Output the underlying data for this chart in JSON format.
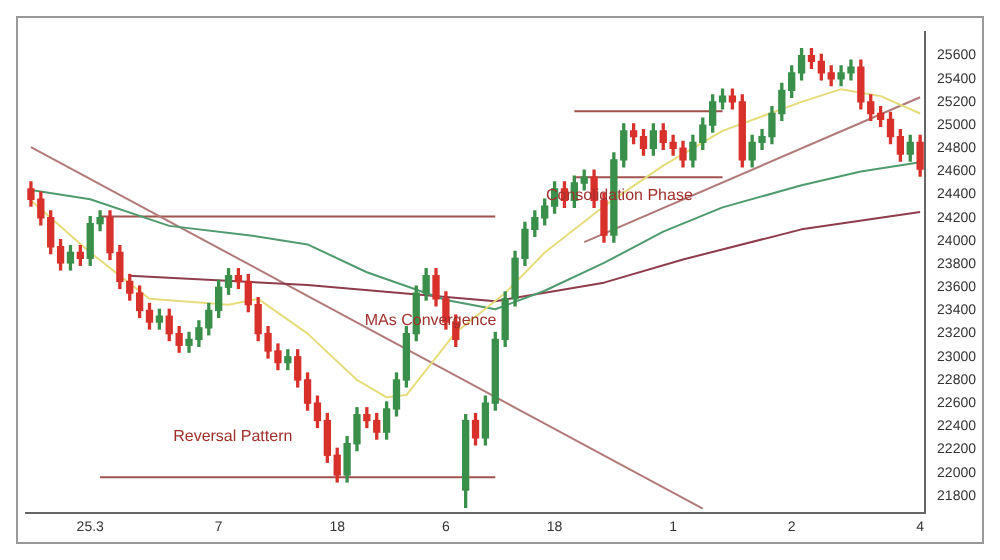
{
  "chart_data": {
    "type": "candlestick",
    "categories": [
      null,
      null,
      null,
      null,
      null,
      null,
      "25.3",
      null,
      null,
      null,
      null,
      null,
      null,
      null,
      null,
      null,
      null,
      null,
      null,
      "7",
      null,
      null,
      null,
      null,
      null,
      null,
      null,
      null,
      null,
      null,
      null,
      "18",
      null,
      null,
      null,
      null,
      null,
      null,
      null,
      null,
      null,
      null,
      "6",
      null,
      null,
      null,
      null,
      null,
      null,
      null,
      null,
      null,
      null,
      "18",
      null,
      null,
      null,
      null,
      null,
      null,
      null,
      null,
      null,
      null,
      null,
      "1",
      null,
      null,
      null,
      null,
      null,
      null,
      null,
      null,
      null,
      null,
      null,
      "2",
      null,
      null,
      null,
      null,
      null,
      null,
      null,
      null,
      null,
      null,
      null,
      null,
      "4"
    ],
    "ohlc": [
      [
        24450,
        24510,
        24300,
        24360
      ],
      [
        24360,
        24420,
        24140,
        24200
      ],
      [
        24200,
        24260,
        23890,
        23950
      ],
      [
        23950,
        24010,
        23750,
        23810
      ],
      [
        23810,
        23960,
        23750,
        23900
      ],
      [
        23900,
        23960,
        23790,
        23850
      ],
      [
        23850,
        24210,
        23790,
        24150
      ],
      [
        24150,
        24260,
        24090,
        24200
      ],
      [
        24200,
        24260,
        23840,
        23900
      ],
      [
        23900,
        23960,
        23590,
        23650
      ],
      [
        23650,
        23710,
        23490,
        23550
      ],
      [
        23550,
        23610,
        23340,
        23400
      ],
      [
        23400,
        23460,
        23240,
        23300
      ],
      [
        23300,
        23410,
        23240,
        23350
      ],
      [
        23350,
        23410,
        23140,
        23200
      ],
      [
        23200,
        23260,
        23040,
        23100
      ],
      [
        23100,
        23210,
        23040,
        23150
      ],
      [
        23150,
        23310,
        23090,
        23250
      ],
      [
        23250,
        23460,
        23190,
        23400
      ],
      [
        23400,
        23660,
        23340,
        23600
      ],
      [
        23600,
        23760,
        23540,
        23700
      ],
      [
        23700,
        23760,
        23590,
        23650
      ],
      [
        23650,
        23710,
        23390,
        23450
      ],
      [
        23450,
        23510,
        23140,
        23200
      ],
      [
        23200,
        23260,
        22990,
        23050
      ],
      [
        23050,
        23110,
        22890,
        22950
      ],
      [
        22950,
        23060,
        22890,
        23000
      ],
      [
        23000,
        23060,
        22740,
        22800
      ],
      [
        22800,
        22860,
        22540,
        22600
      ],
      [
        22600,
        22660,
        22390,
        22450
      ],
      [
        22450,
        22510,
        22090,
        22150
      ],
      [
        22150,
        22210,
        21920,
        21980
      ],
      [
        21980,
        22310,
        21920,
        22250
      ],
      [
        22250,
        22560,
        22190,
        22500
      ],
      [
        22500,
        22560,
        22390,
        22450
      ],
      [
        22450,
        22510,
        22290,
        22350
      ],
      [
        22350,
        22610,
        22290,
        22550
      ],
      [
        22550,
        22860,
        22490,
        22800
      ],
      [
        22800,
        23260,
        22740,
        23200
      ],
      [
        23200,
        23610,
        23140,
        23550
      ],
      [
        23550,
        23760,
        23490,
        23700
      ],
      [
        23700,
        23760,
        23440,
        23500
      ],
      [
        23500,
        23560,
        23240,
        23300
      ],
      [
        23300,
        23360,
        23090,
        23150
      ],
      [
        21850,
        22500,
        21700,
        22450
      ],
      [
        22450,
        22510,
        22240,
        22300
      ],
      [
        22300,
        22660,
        22240,
        22600
      ],
      [
        22600,
        23210,
        22540,
        23150
      ],
      [
        23150,
        23560,
        23090,
        23500
      ],
      [
        23500,
        23910,
        23440,
        23850
      ],
      [
        23850,
        24160,
        23790,
        24100
      ],
      [
        24100,
        24260,
        24040,
        24200
      ],
      [
        24200,
        24360,
        24140,
        24300
      ],
      [
        24300,
        24510,
        24240,
        24450
      ],
      [
        24450,
        24510,
        24290,
        24350
      ],
      [
        24350,
        24560,
        24290,
        24500
      ],
      [
        24500,
        24610,
        24440,
        24550
      ],
      [
        24550,
        24610,
        24290,
        24350
      ],
      [
        24350,
        24410,
        23990,
        24050
      ],
      [
        24050,
        24760,
        23990,
        24700
      ],
      [
        24700,
        25010,
        24640,
        24950
      ],
      [
        24950,
        25010,
        24840,
        24900
      ],
      [
        24900,
        24960,
        24740,
        24800
      ],
      [
        24800,
        25010,
        24740,
        24950
      ],
      [
        24950,
        25010,
        24790,
        24850
      ],
      [
        24850,
        24910,
        24740,
        24800
      ],
      [
        24800,
        24860,
        24640,
        24700
      ],
      [
        24700,
        24910,
        24640,
        24850
      ],
      [
        24850,
        25060,
        24790,
        25000
      ],
      [
        25000,
        25260,
        24940,
        25200
      ],
      [
        25200,
        25310,
        25140,
        25250
      ],
      [
        25250,
        25310,
        25140,
        25200
      ],
      [
        25200,
        25260,
        24640,
        24700
      ],
      [
        24700,
        24910,
        24640,
        24850
      ],
      [
        24850,
        24960,
        24790,
        24900
      ],
      [
        24900,
        25160,
        24840,
        25100
      ],
      [
        25100,
        25360,
        25040,
        25300
      ],
      [
        25300,
        25510,
        25240,
        25450
      ],
      [
        25450,
        25660,
        25390,
        25600
      ],
      [
        25600,
        25660,
        25490,
        25550
      ],
      [
        25550,
        25610,
        25390,
        25450
      ],
      [
        25450,
        25510,
        25340,
        25400
      ],
      [
        25400,
        25510,
        25340,
        25450
      ],
      [
        25450,
        25560,
        25390,
        25500
      ],
      [
        25500,
        25560,
        25140,
        25200
      ],
      [
        25200,
        25260,
        25040,
        25100
      ],
      [
        25100,
        25160,
        24990,
        25050
      ],
      [
        25050,
        25110,
        24840,
        24900
      ],
      [
        24900,
        24960,
        24690,
        24750
      ],
      [
        24750,
        24910,
        24690,
        24850
      ],
      [
        24850,
        24910,
        24560,
        24620
      ]
    ],
    "colors": [
      "#d8312b",
      "#d8312b",
      "#d8312b",
      "#d8312b",
      "#3a8f4a",
      "#d8312b",
      "#3a8f4a",
      "#3a8f4a",
      "#d8312b",
      "#d8312b",
      "#d8312b",
      "#d8312b",
      "#d8312b",
      "#3a8f4a",
      "#d8312b",
      "#d8312b",
      "#3a8f4a",
      "#3a8f4a",
      "#3a8f4a",
      "#3a8f4a",
      "#3a8f4a",
      "#d8312b",
      "#d8312b",
      "#d8312b",
      "#d8312b",
      "#d8312b",
      "#3a8f4a",
      "#d8312b",
      "#d8312b",
      "#d8312b",
      "#d8312b",
      "#d8312b",
      "#3a8f4a",
      "#3a8f4a",
      "#d8312b",
      "#d8312b",
      "#3a8f4a",
      "#3a8f4a",
      "#3a8f4a",
      "#3a8f4a",
      "#3a8f4a",
      "#d8312b",
      "#d8312b",
      "#d8312b",
      "#3a8f4a",
      "#d8312b",
      "#3a8f4a",
      "#3a8f4a",
      "#3a8f4a",
      "#3a8f4a",
      "#3a8f4a",
      "#3a8f4a",
      "#3a8f4a",
      "#3a8f4a",
      "#d8312b",
      "#3a8f4a",
      "#3a8f4a",
      "#d8312b",
      "#d8312b",
      "#3a8f4a",
      "#3a8f4a",
      "#d8312b",
      "#d8312b",
      "#3a8f4a",
      "#d8312b",
      "#d8312b",
      "#d8312b",
      "#3a8f4a",
      "#3a8f4a",
      "#3a8f4a",
      "#3a8f4a",
      "#d8312b",
      "#d8312b",
      "#3a8f4a",
      "#3a8f4a",
      "#3a8f4a",
      "#3a8f4a",
      "#3a8f4a",
      "#3a8f4a",
      "#d8312b",
      "#d8312b",
      "#d8312b",
      "#3a8f4a",
      "#3a8f4a",
      "#d8312b",
      "#d8312b",
      "#d8312b",
      "#d8312b",
      "#d8312b",
      "#3a8f4a",
      "#d8312b"
    ],
    "series": [
      {
        "type": "line",
        "color": "#e6dc7c",
        "values": [
          24350,
          null,
          null,
          null,
          null,
          null,
          23900,
          null,
          null,
          null,
          null,
          null,
          23500,
          null,
          null,
          null,
          null,
          null,
          null,
          null,
          23450,
          null,
          null,
          23500,
          null,
          null,
          null,
          null,
          23200,
          null,
          null,
          null,
          null,
          22800,
          null,
          null,
          22650,
          null,
          22670,
          null,
          null,
          null,
          null,
          23210,
          null,
          null,
          null,
          null,
          23550,
          null,
          null,
          null,
          23900,
          null,
          null,
          null,
          null,
          null,
          24300,
          null,
          null,
          null,
          null,
          null,
          24650,
          null,
          null,
          null,
          null,
          null,
          24950,
          null,
          null,
          null,
          null,
          null,
          null,
          null,
          25200,
          null,
          null,
          null,
          25310,
          null,
          null,
          null,
          25250,
          null,
          null,
          null,
          25100
        ]
      },
      {
        "type": "line",
        "color": "#4f9a6e",
        "values": [
          24440,
          null,
          null,
          null,
          null,
          null,
          24360,
          null,
          null,
          null,
          null,
          null,
          null,
          null,
          24130,
          null,
          null,
          null,
          null,
          null,
          null,
          null,
          24050,
          null,
          null,
          null,
          null,
          null,
          23970,
          null,
          null,
          null,
          null,
          null,
          23730,
          null,
          null,
          null,
          null,
          null,
          null,
          null,
          23490,
          null,
          null,
          null,
          null,
          23410,
          null,
          null,
          null,
          null,
          23570,
          null,
          null,
          null,
          null,
          null,
          23810,
          null,
          null,
          null,
          null,
          null,
          24080,
          null,
          null,
          null,
          null,
          null,
          24290,
          null,
          null,
          null,
          null,
          null,
          null,
          null,
          24480,
          null,
          null,
          null,
          null,
          null,
          24600,
          null,
          null,
          null,
          null,
          null,
          24680
        ]
      },
      {
        "type": "line",
        "color": "#8e3b4c",
        "values": [
          null,
          null,
          null,
          null,
          null,
          null,
          null,
          null,
          null,
          null,
          23700,
          null,
          null,
          null,
          null,
          null,
          null,
          null,
          null,
          null,
          null,
          null,
          null,
          null,
          null,
          null,
          null,
          null,
          23620,
          null,
          null,
          null,
          null,
          null,
          null,
          null,
          null,
          null,
          null,
          null,
          null,
          null,
          null,
          null,
          null,
          null,
          null,
          23480,
          null,
          null,
          null,
          null,
          null,
          null,
          null,
          null,
          null,
          null,
          23640,
          null,
          null,
          null,
          null,
          null,
          null,
          null,
          23840,
          null,
          null,
          null,
          null,
          null,
          null,
          null,
          null,
          null,
          null,
          null,
          24100,
          null,
          null,
          null,
          null,
          null,
          null,
          null,
          null,
          null,
          null,
          null,
          24250
        ]
      },
      {
        "type": "line",
        "color": "#b07a78",
        "values": [
          24810,
          null,
          null,
          null,
          null,
          null,
          null,
          null,
          null,
          null,
          null,
          null,
          null,
          null,
          null,
          null,
          null,
          null,
          null,
          null,
          null,
          null,
          null,
          null,
          null,
          null,
          null,
          null,
          null,
          null,
          null,
          null,
          null,
          null,
          null,
          null,
          null,
          null,
          null,
          null,
          null,
          null,
          null,
          null,
          null,
          null,
          null,
          null,
          null,
          null,
          null,
          null,
          null,
          null,
          null,
          null,
          null,
          null,
          null,
          null,
          null,
          null,
          null,
          null,
          null,
          null,
          null,
          null,
          21690,
          null,
          null,
          null,
          null,
          null,
          null,
          null,
          null,
          null,
          null,
          null,
          null,
          null,
          null,
          null,
          null,
          null,
          null,
          null,
          null,
          null,
          null
        ]
      },
      {
        "type": "line",
        "color": "#b07a78",
        "values": [
          null,
          null,
          null,
          null,
          null,
          null,
          null,
          null,
          null,
          null,
          null,
          null,
          null,
          null,
          null,
          null,
          null,
          null,
          null,
          null,
          null,
          null,
          null,
          null,
          null,
          null,
          null,
          null,
          null,
          null,
          null,
          null,
          null,
          null,
          null,
          null,
          null,
          null,
          null,
          null,
          null,
          null,
          null,
          null,
          null,
          null,
          null,
          null,
          null,
          null,
          null,
          null,
          null,
          null,
          null,
          null,
          23990,
          null,
          null,
          null,
          null,
          null,
          null,
          null,
          null,
          null,
          null,
          null,
          null,
          null,
          null,
          null,
          null,
          null,
          null,
          null,
          null,
          null,
          null,
          null,
          null,
          null,
          null,
          null,
          null,
          null,
          null,
          null,
          null,
          null,
          25240
        ]
      },
      {
        "type": "line",
        "color": "#a0524f",
        "values": [
          null,
          null,
          null,
          null,
          null,
          null,
          null,
          24210,
          null,
          null,
          null,
          null,
          null,
          null,
          null,
          null,
          null,
          null,
          null,
          null,
          null,
          null,
          null,
          null,
          null,
          null,
          null,
          null,
          null,
          null,
          null,
          null,
          null,
          null,
          null,
          null,
          null,
          null,
          null,
          null,
          null,
          null,
          null,
          null,
          null,
          null,
          null,
          24210,
          null,
          null,
          null,
          null,
          null,
          null,
          null,
          null,
          null,
          null,
          null,
          null,
          null,
          null,
          null,
          null,
          null,
          null,
          null,
          null,
          null,
          null,
          null,
          null,
          null,
          null,
          null,
          null,
          null,
          null,
          null,
          null,
          null,
          null,
          null,
          null,
          null,
          null,
          null,
          null,
          null,
          null,
          null
        ]
      },
      {
        "type": "line",
        "color": "#a0524f",
        "values": [
          null,
          null,
          null,
          null,
          null,
          null,
          null,
          21960,
          null,
          null,
          null,
          null,
          null,
          null,
          null,
          null,
          null,
          null,
          null,
          null,
          null,
          null,
          null,
          null,
          null,
          null,
          null,
          null,
          null,
          null,
          null,
          null,
          null,
          null,
          null,
          null,
          null,
          null,
          null,
          null,
          null,
          null,
          null,
          null,
          null,
          null,
          null,
          21960,
          null,
          null,
          null,
          null,
          null,
          null,
          null,
          null,
          null,
          null,
          null,
          null,
          null,
          null,
          null,
          null,
          null,
          null,
          null,
          null,
          null,
          null,
          null,
          null,
          null,
          null,
          null,
          null,
          null,
          null,
          null,
          null,
          null,
          null,
          null,
          null,
          null,
          null,
          null,
          null,
          null,
          null,
          null
        ]
      },
      {
        "type": "line",
        "color": "#a0524f",
        "values": [
          null,
          null,
          null,
          null,
          null,
          null,
          null,
          null,
          null,
          null,
          null,
          null,
          null,
          null,
          null,
          null,
          null,
          null,
          null,
          null,
          null,
          null,
          null,
          null,
          null,
          null,
          null,
          null,
          null,
          null,
          null,
          null,
          null,
          null,
          null,
          null,
          null,
          null,
          null,
          null,
          null,
          null,
          null,
          null,
          null,
          null,
          null,
          null,
          null,
          null,
          null,
          null,
          null,
          null,
          null,
          25120,
          null,
          null,
          null,
          null,
          null,
          null,
          null,
          null,
          null,
          null,
          null,
          null,
          null,
          null,
          25120,
          null,
          null,
          null,
          null,
          null,
          null,
          null,
          null,
          null,
          null,
          null,
          null,
          null,
          null,
          null,
          null,
          null,
          null,
          null,
          null
        ]
      },
      {
        "type": "line",
        "color": "#a0524f",
        "values": [
          null,
          null,
          null,
          null,
          null,
          null,
          null,
          null,
          null,
          null,
          null,
          null,
          null,
          null,
          null,
          null,
          null,
          null,
          null,
          null,
          null,
          null,
          null,
          null,
          null,
          null,
          null,
          null,
          null,
          null,
          null,
          null,
          null,
          null,
          null,
          null,
          null,
          null,
          null,
          null,
          null,
          null,
          null,
          null,
          null,
          null,
          null,
          null,
          null,
          null,
          null,
          null,
          null,
          null,
          null,
          24550,
          null,
          null,
          null,
          null,
          null,
          null,
          null,
          null,
          null,
          null,
          null,
          null,
          null,
          null,
          24550,
          null,
          null,
          null,
          null,
          null,
          null,
          null,
          null,
          null,
          null,
          null,
          null,
          null,
          null,
          null,
          null,
          null,
          null,
          null,
          null
        ]
      }
    ],
    "ylim": [
      21650,
      25800
    ],
    "yticks": [
      21800,
      22000,
      22200,
      22400,
      22600,
      22800,
      23000,
      23200,
      23400,
      23600,
      23800,
      24000,
      24200,
      24400,
      24600,
      24800,
      25000,
      25200,
      25400,
      25600
    ],
    "annotations": [
      "Reversal Pattern",
      "MAs Convergence",
      "Consolidation Phase"
    ],
    "grid": false,
    "legend": false,
    "marker": "none",
    "line_style": "solid"
  }
}
